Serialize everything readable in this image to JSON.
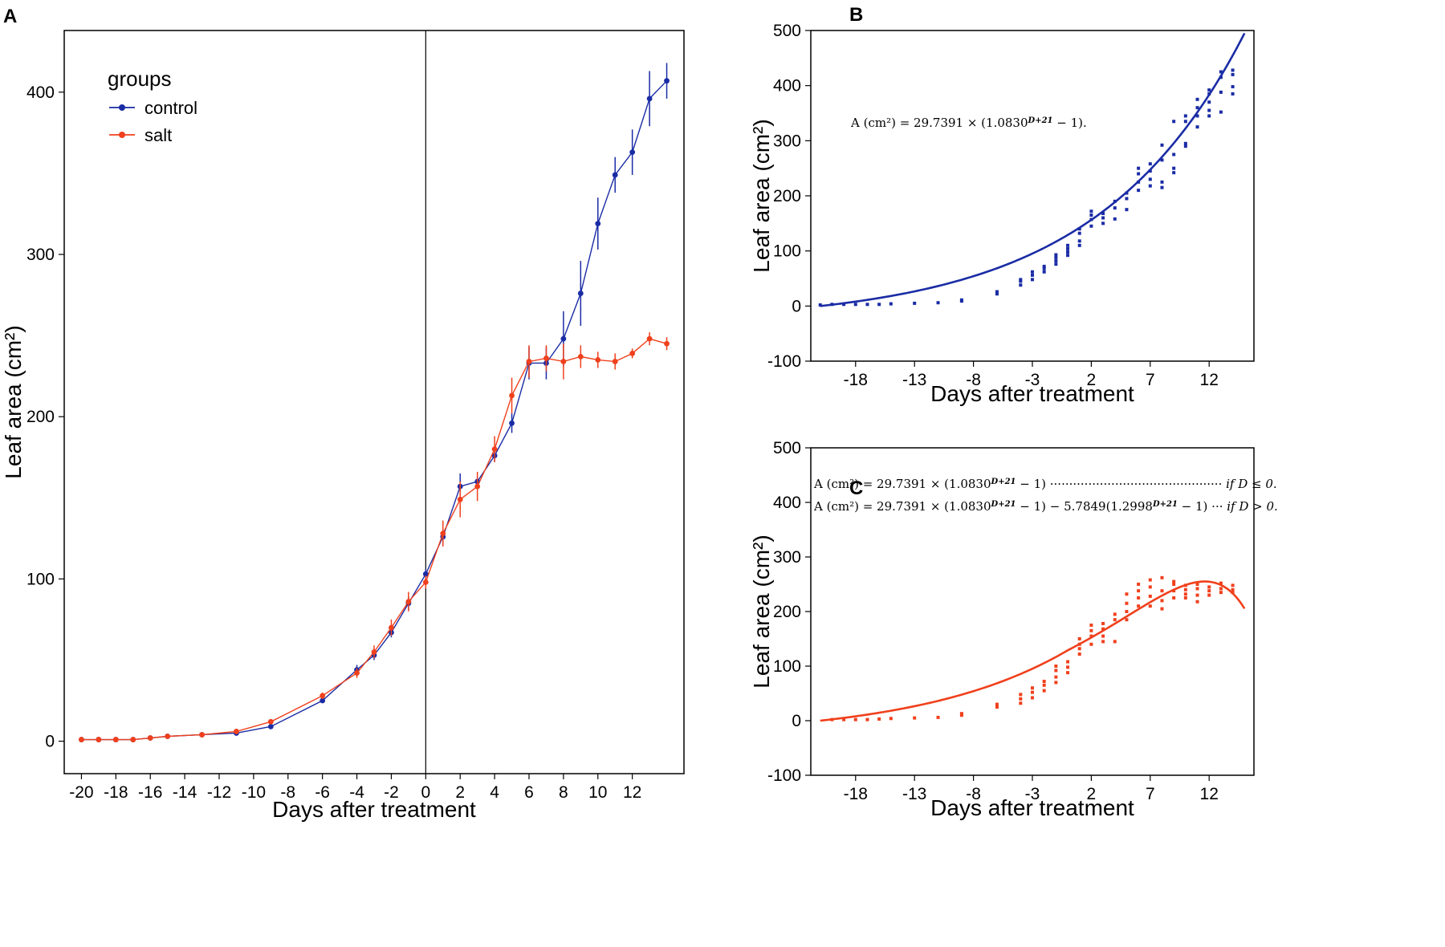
{
  "chart_data": [
    {
      "panel": "A",
      "type": "line",
      "xlabel": "Days after treatment",
      "ylabel": "Leaf area (cm²)",
      "xlim": [
        -21,
        15
      ],
      "ylim": [
        -20,
        438
      ],
      "x_ticks": [
        -20,
        -18,
        -16,
        -14,
        -12,
        -10,
        -8,
        -6,
        -4,
        -2,
        0,
        2,
        4,
        6,
        8,
        10,
        12
      ],
      "y_ticks": [
        0,
        100,
        200,
        300,
        400
      ],
      "vline_x": 0,
      "legend": {
        "title": "groups",
        "position": "top-left"
      },
      "series": [
        {
          "name": "control",
          "color": "#1a2ca5",
          "points": [
            {
              "x": -20,
              "y": 1,
              "err": 0
            },
            {
              "x": -19,
              "y": 1,
              "err": 0
            },
            {
              "x": -18,
              "y": 1,
              "err": 0
            },
            {
              "x": -17,
              "y": 1,
              "err": 0
            },
            {
              "x": -16,
              "y": 2,
              "err": 0
            },
            {
              "x": -15,
              "y": 3,
              "err": 0
            },
            {
              "x": -13,
              "y": 4,
              "err": 0
            },
            {
              "x": -11,
              "y": 5,
              "err": 0
            },
            {
              "x": -9,
              "y": 9,
              "err": 0
            },
            {
              "x": -6,
              "y": 25,
              "err": 1
            },
            {
              "x": -4,
              "y": 44,
              "err": 3
            },
            {
              "x": -3,
              "y": 53,
              "err": 3
            },
            {
              "x": -2,
              "y": 67,
              "err": 3
            },
            {
              "x": -1,
              "y": 85,
              "err": 4
            },
            {
              "x": 0,
              "y": 103,
              "err": 3
            },
            {
              "x": 1,
              "y": 126,
              "err": 5
            },
            {
              "x": 2,
              "y": 157,
              "err": 8
            },
            {
              "x": 3,
              "y": 160,
              "err": 3
            },
            {
              "x": 4,
              "y": 176,
              "err": 4
            },
            {
              "x": 5,
              "y": 196,
              "err": 6
            },
            {
              "x": 6,
              "y": 233,
              "err": 10
            },
            {
              "x": 7,
              "y": 233,
              "err": 10
            },
            {
              "x": 8,
              "y": 248,
              "err": 17
            },
            {
              "x": 9,
              "y": 276,
              "err": 20
            },
            {
              "x": 10,
              "y": 319,
              "err": 16
            },
            {
              "x": 11,
              "y": 349,
              "err": 11
            },
            {
              "x": 12,
              "y": 363,
              "err": 14
            },
            {
              "x": 13,
              "y": 396,
              "err": 17
            },
            {
              "x": 14,
              "y": 407,
              "err": 11
            }
          ]
        },
        {
          "name": "salt",
          "color": "#f0401c",
          "points": [
            {
              "x": -20,
              "y": 1,
              "err": 0
            },
            {
              "x": -19,
              "y": 1,
              "err": 0
            },
            {
              "x": -18,
              "y": 1,
              "err": 0
            },
            {
              "x": -17,
              "y": 1,
              "err": 0
            },
            {
              "x": -16,
              "y": 2,
              "err": 0
            },
            {
              "x": -15,
              "y": 3,
              "err": 0
            },
            {
              "x": -13,
              "y": 4,
              "err": 0
            },
            {
              "x": -11,
              "y": 6,
              "err": 0
            },
            {
              "x": -9,
              "y": 12,
              "err": 1
            },
            {
              "x": -6,
              "y": 28,
              "err": 2
            },
            {
              "x": -4,
              "y": 42,
              "err": 3
            },
            {
              "x": -3,
              "y": 55,
              "err": 4
            },
            {
              "x": -2,
              "y": 70,
              "err": 5
            },
            {
              "x": -1,
              "y": 86,
              "err": 6
            },
            {
              "x": 0,
              "y": 98,
              "err": 4
            },
            {
              "x": 1,
              "y": 128,
              "err": 8
            },
            {
              "x": 2,
              "y": 149,
              "err": 11
            },
            {
              "x": 3,
              "y": 157,
              "err": 9
            },
            {
              "x": 4,
              "y": 180,
              "err": 8
            },
            {
              "x": 5,
              "y": 213,
              "err": 11
            },
            {
              "x": 6,
              "y": 234,
              "err": 10
            },
            {
              "x": 7,
              "y": 236,
              "err": 8
            },
            {
              "x": 8,
              "y": 234,
              "err": 11
            },
            {
              "x": 9,
              "y": 237,
              "err": 7
            },
            {
              "x": 10,
              "y": 235,
              "err": 5
            },
            {
              "x": 11,
              "y": 234,
              "err": 5
            },
            {
              "x": 12,
              "y": 239,
              "err": 3
            },
            {
              "x": 13,
              "y": 248,
              "err": 4
            },
            {
              "x": 14,
              "y": 245,
              "err": 4
            }
          ]
        }
      ]
    },
    {
      "panel": "B",
      "type": "scatter",
      "xlabel": "Days after treatment",
      "ylabel": "Leaf area (cm²)",
      "xlim": [
        -21.8,
        15.8
      ],
      "ylim": [
        -100,
        500
      ],
      "x_ticks": [
        -18,
        -13,
        -8,
        -3,
        2,
        7,
        12
      ],
      "y_ticks": [
        -100,
        0,
        100,
        200,
        300,
        400,
        500
      ],
      "color": "#1a2ca5",
      "equation": "A (cm²) = 29.7391 × (1.0830^(D+21) − 1).",
      "fit": {
        "a": 29.7391,
        "base": 1.083,
        "shift": 21,
        "x_range": [
          -21,
          15
        ]
      },
      "scatter": [
        [
          -21,
          2
        ],
        [
          -20,
          3
        ],
        [
          -19,
          3
        ],
        [
          -18,
          3
        ],
        [
          -17,
          3
        ],
        [
          -16,
          3
        ],
        [
          -15,
          4
        ],
        [
          -13,
          5
        ],
        [
          -11,
          6
        ],
        [
          -9,
          9
        ],
        [
          -9,
          11
        ],
        [
          -6,
          22
        ],
        [
          -6,
          26
        ],
        [
          -4,
          38
        ],
        [
          -4,
          45
        ],
        [
          -4,
          48
        ],
        [
          -3,
          48
        ],
        [
          -3,
          56
        ],
        [
          -3,
          62
        ],
        [
          -2,
          62
        ],
        [
          -2,
          68
        ],
        [
          -2,
          72
        ],
        [
          -1,
          76
        ],
        [
          -1,
          82
        ],
        [
          -1,
          88
        ],
        [
          -1,
          93
        ],
        [
          0,
          92
        ],
        [
          0,
          98
        ],
        [
          0,
          104
        ],
        [
          0,
          110
        ],
        [
          1,
          110
        ],
        [
          1,
          118
        ],
        [
          1,
          132
        ],
        [
          1,
          140
        ],
        [
          2,
          145
        ],
        [
          2,
          157
        ],
        [
          2,
          165
        ],
        [
          2,
          172
        ],
        [
          3,
          150
        ],
        [
          3,
          160
        ],
        [
          3,
          168
        ],
        [
          4,
          158
        ],
        [
          4,
          178
        ],
        [
          4,
          190
        ],
        [
          5,
          175
        ],
        [
          5,
          195
        ],
        [
          5,
          205
        ],
        [
          6,
          210
        ],
        [
          6,
          225
        ],
        [
          6,
          240
        ],
        [
          6,
          250
        ],
        [
          7,
          218
        ],
        [
          7,
          230
        ],
        [
          7,
          245
        ],
        [
          7,
          258
        ],
        [
          8,
          215
        ],
        [
          8,
          225
        ],
        [
          8,
          265
        ],
        [
          8,
          292
        ],
        [
          9,
          242
        ],
        [
          9,
          250
        ],
        [
          9,
          275
        ],
        [
          9,
          335
        ],
        [
          10,
          290
        ],
        [
          10,
          295
        ],
        [
          10,
          335
        ],
        [
          10,
          345
        ],
        [
          11,
          325
        ],
        [
          11,
          345
        ],
        [
          11,
          360
        ],
        [
          11,
          375
        ],
        [
          12,
          345
        ],
        [
          12,
          355
        ],
        [
          12,
          370
        ],
        [
          12,
          385
        ],
        [
          12,
          392
        ],
        [
          13,
          352
        ],
        [
          13,
          388
        ],
        [
          13,
          415
        ],
        [
          13,
          425
        ],
        [
          14,
          385
        ],
        [
          14,
          398
        ],
        [
          14,
          420
        ],
        [
          14,
          428
        ]
      ]
    },
    {
      "panel": "C",
      "type": "scatter",
      "xlabel": "Days after treatment",
      "ylabel": "Leaf area (cm²)",
      "xlim": [
        -21.8,
        15.8
      ],
      "ylim": [
        -100,
        500
      ],
      "x_ticks": [
        -18,
        -13,
        -8,
        -3,
        2,
        7,
        12
      ],
      "y_ticks": [
        -100,
        0,
        100,
        200,
        300,
        400,
        500
      ],
      "color": "#f0401c",
      "equations": [
        {
          "lhs": "A (cm²) = 29.7391 × (1.0830^(D+21) − 1)",
          "dots": "·············································",
          "cond": "if D ≤ 0."
        },
        {
          "lhs": "A (cm²) = 29.7391 × (1.0830^(D+21) − 1) − 5.7849(1.2998^(D+21) − 1)",
          "dots": "···",
          "cond": "if D > 0."
        }
      ],
      "fit": {
        "a": 29.7391,
        "base": 1.083,
        "shift": 21,
        "b": 5.7849,
        "base2": 1.2998,
        "x_range": [
          -21,
          15
        ]
      },
      "scatter": [
        [
          -20,
          2
        ],
        [
          -19,
          2
        ],
        [
          -18,
          2
        ],
        [
          -17,
          2
        ],
        [
          -16,
          3
        ],
        [
          -15,
          4
        ],
        [
          -13,
          5
        ],
        [
          -11,
          6
        ],
        [
          -9,
          10
        ],
        [
          -9,
          13
        ],
        [
          -6,
          25
        ],
        [
          -6,
          30
        ],
        [
          -4,
          32
        ],
        [
          -4,
          40
        ],
        [
          -4,
          48
        ],
        [
          -3,
          42
        ],
        [
          -3,
          52
        ],
        [
          -3,
          60
        ],
        [
          -2,
          55
        ],
        [
          -2,
          65
        ],
        [
          -2,
          72
        ],
        [
          -1,
          70
        ],
        [
          -1,
          80
        ],
        [
          -1,
          92
        ],
        [
          -1,
          100
        ],
        [
          0,
          88
        ],
        [
          0,
          98
        ],
        [
          0,
          108
        ],
        [
          1,
          122
        ],
        [
          1,
          132
        ],
        [
          1,
          140
        ],
        [
          1,
          150
        ],
        [
          2,
          140
        ],
        [
          2,
          155
        ],
        [
          2,
          165
        ],
        [
          2,
          175
        ],
        [
          3,
          145
        ],
        [
          3,
          155
        ],
        [
          3,
          168
        ],
        [
          3,
          178
        ],
        [
          4,
          145
        ],
        [
          4,
          185
        ],
        [
          4,
          195
        ],
        [
          5,
          185
        ],
        [
          5,
          200
        ],
        [
          5,
          215
        ],
        [
          5,
          232
        ],
        [
          6,
          210
        ],
        [
          6,
          225
        ],
        [
          6,
          238
        ],
        [
          6,
          250
        ],
        [
          7,
          210
        ],
        [
          7,
          228
        ],
        [
          7,
          245
        ],
        [
          7,
          258
        ],
        [
          8,
          205
        ],
        [
          8,
          220
        ],
        [
          8,
          238
        ],
        [
          8,
          262
        ],
        [
          9,
          225
        ],
        [
          9,
          238
        ],
        [
          9,
          250
        ],
        [
          9,
          255
        ],
        [
          10,
          225
        ],
        [
          10,
          232
        ],
        [
          10,
          240
        ],
        [
          10,
          248
        ],
        [
          11,
          218
        ],
        [
          11,
          230
        ],
        [
          11,
          242
        ],
        [
          11,
          250
        ],
        [
          12,
          230
        ],
        [
          12,
          238
        ],
        [
          12,
          245
        ],
        [
          13,
          235
        ],
        [
          13,
          242
        ],
        [
          13,
          252
        ],
        [
          14,
          235
        ],
        [
          14,
          240
        ],
        [
          14,
          248
        ]
      ]
    }
  ],
  "figure_labels": {
    "a": "A",
    "b": "B",
    "c": "C"
  }
}
